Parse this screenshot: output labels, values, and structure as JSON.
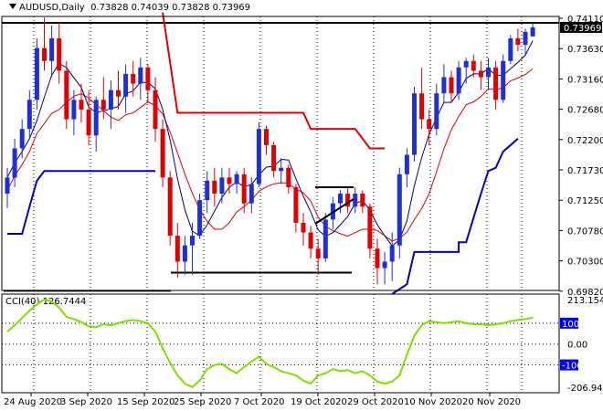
{
  "header": {
    "symbol": "AUDUSD,Daily",
    "ohlc": "0.73828 0.74039 0.73828 0.73969"
  },
  "price_axis": {
    "labels": [
      "0.74110",
      "0.73630",
      "0.73160",
      "0.72680",
      "0.72200",
      "0.71730",
      "0.71250",
      "0.70780",
      "0.70300",
      "0.69820"
    ],
    "current": "0.73969"
  },
  "cci_panel": {
    "title": "CCI(40) 126.7444",
    "labels": [
      "213.1541",
      "100",
      "0.00",
      "-100",
      "-206.9462"
    ]
  },
  "time_axis": {
    "labels": [
      "24 Aug 2020",
      "3 Sep 2020",
      "15 Sep 2020",
      "25 Sep 2020",
      "7 Oct 2020",
      "19 Oct 2020",
      "29 Oct 2020",
      "10 Nov 2020",
      "20 Nov 2020"
    ]
  },
  "colors": {
    "bull": "#1f2fd6",
    "bear": "#e00000",
    "ma_fast": "#000080",
    "ma_mid": "#e00000",
    "ma_slow": "#0000c8",
    "stop": "#e00000",
    "cci": "#7fe000",
    "cci_level": "#0000ff"
  },
  "chart_data": {
    "type": "candlestick",
    "series": [
      {
        "name": "AUDUSD",
        "candles": [
          [
            0.714,
            0.718,
            0.7118,
            0.7165
          ],
          [
            0.7165,
            0.7225,
            0.715,
            0.721
          ],
          [
            0.721,
            0.7255,
            0.7195,
            0.724
          ],
          [
            0.724,
            0.73,
            0.7225,
            0.7285
          ],
          [
            0.7285,
            0.738,
            0.727,
            0.7365
          ],
          [
            0.7365,
            0.7412,
            0.733,
            0.7345
          ],
          [
            0.7345,
            0.74,
            0.732,
            0.738
          ],
          [
            0.738,
            0.7405,
            0.731,
            0.733
          ],
          [
            0.733,
            0.7345,
            0.724,
            0.7255
          ],
          [
            0.7255,
            0.73,
            0.723,
            0.7285
          ],
          [
            0.7285,
            0.731,
            0.725,
            0.727
          ],
          [
            0.727,
            0.73,
            0.7215,
            0.723
          ],
          [
            0.723,
            0.729,
            0.7205,
            0.7285
          ],
          [
            0.7285,
            0.732,
            0.7255,
            0.727
          ],
          [
            0.727,
            0.7315,
            0.724,
            0.73
          ],
          [
            0.73,
            0.733,
            0.727,
            0.729
          ],
          [
            0.729,
            0.734,
            0.7265,
            0.7325
          ],
          [
            0.7325,
            0.7345,
            0.729,
            0.731
          ],
          [
            0.731,
            0.735,
            0.7285,
            0.7335
          ],
          [
            0.7335,
            0.734,
            0.728,
            0.73
          ],
          [
            0.73,
            0.732,
            0.722,
            0.724
          ],
          [
            0.724,
            0.7255,
            0.715,
            0.7165
          ],
          [
            0.7165,
            0.7175,
            0.706,
            0.7075
          ],
          [
            0.7075,
            0.7095,
            0.701,
            0.7035
          ],
          [
            0.7035,
            0.7075,
            0.7015,
            0.706
          ],
          [
            0.706,
            0.7095,
            0.7015,
            0.7075
          ],
          [
            0.7075,
            0.714,
            0.707,
            0.713
          ],
          [
            0.713,
            0.7175,
            0.711,
            0.716
          ],
          [
            0.716,
            0.718,
            0.712,
            0.714
          ],
          [
            0.714,
            0.718,
            0.7125,
            0.7165
          ],
          [
            0.7165,
            0.718,
            0.714,
            0.7155
          ],
          [
            0.7155,
            0.7175,
            0.714,
            0.717
          ],
          [
            0.717,
            0.718,
            0.711,
            0.7125
          ],
          [
            0.7125,
            0.7165,
            0.711,
            0.7155
          ],
          [
            0.7155,
            0.725,
            0.715,
            0.724
          ],
          [
            0.724,
            0.7245,
            0.72,
            0.7215
          ],
          [
            0.7215,
            0.722,
            0.7165,
            0.7175
          ],
          [
            0.7175,
            0.7195,
            0.7155,
            0.718
          ],
          [
            0.718,
            0.7185,
            0.714,
            0.715
          ],
          [
            0.715,
            0.7155,
            0.708,
            0.7095
          ],
          [
            0.7095,
            0.711,
            0.706,
            0.708
          ],
          [
            0.708,
            0.709,
            0.704,
            0.7055
          ],
          [
            0.7055,
            0.707,
            0.7015,
            0.704
          ],
          [
            0.704,
            0.711,
            0.7035,
            0.71
          ],
          [
            0.71,
            0.7135,
            0.7085,
            0.7125
          ],
          [
            0.7125,
            0.7145,
            0.711,
            0.714
          ],
          [
            0.714,
            0.715,
            0.711,
            0.712
          ],
          [
            0.712,
            0.715,
            0.711,
            0.714
          ],
          [
            0.714,
            0.7145,
            0.711,
            0.712
          ],
          [
            0.712,
            0.7125,
            0.704,
            0.7055
          ],
          [
            0.7055,
            0.707,
            0.7,
            0.7025
          ],
          [
            0.7025,
            0.705,
            0.7,
            0.7035
          ],
          [
            0.7035,
            0.708,
            0.7005,
            0.706
          ],
          [
            0.706,
            0.718,
            0.704,
            0.717
          ],
          [
            0.717,
            0.721,
            0.715,
            0.72
          ],
          [
            0.72,
            0.7305,
            0.719,
            0.7295
          ],
          [
            0.7295,
            0.7335,
            0.724,
            0.7255
          ],
          [
            0.7255,
            0.727,
            0.7215,
            0.724
          ],
          [
            0.724,
            0.731,
            0.723,
            0.7295
          ],
          [
            0.7295,
            0.734,
            0.728,
            0.732
          ],
          [
            0.732,
            0.733,
            0.728,
            0.7295
          ],
          [
            0.7295,
            0.7345,
            0.7285,
            0.7335
          ],
          [
            0.7335,
            0.735,
            0.731,
            0.7345
          ],
          [
            0.7345,
            0.7355,
            0.732,
            0.733
          ],
          [
            0.733,
            0.7345,
            0.73,
            0.732
          ],
          [
            0.732,
            0.735,
            0.73,
            0.7335
          ],
          [
            0.7335,
            0.7345,
            0.727,
            0.7285
          ],
          [
            0.7285,
            0.7355,
            0.728,
            0.7345
          ],
          [
            0.7345,
            0.7385,
            0.734,
            0.738
          ],
          [
            0.738,
            0.7395,
            0.736,
            0.737
          ],
          [
            0.737,
            0.7395,
            0.7355,
            0.739
          ],
          [
            0.7383,
            0.7404,
            0.7383,
            0.7397
          ]
        ]
      }
    ],
    "levels": {
      "resistance": 0.7404,
      "support": 0.7018,
      "old_low": 0.699
    },
    "cci": [
      60,
      90,
      125,
      160,
      190,
      213,
      205,
      175,
      130,
      120,
      105,
      85,
      80,
      95,
      90,
      100,
      110,
      115,
      110,
      100,
      60,
      -20,
      -90,
      -150,
      -190,
      -206,
      -175,
      -120,
      -100,
      -95,
      -120,
      -140,
      -110,
      -85,
      -60,
      -95,
      -110,
      -130,
      -140,
      -150,
      -175,
      -190,
      -150,
      -140,
      -120,
      -130,
      -125,
      -140,
      -130,
      -150,
      -180,
      -190,
      -180,
      -150,
      -50,
      40,
      90,
      110,
      105,
      100,
      105,
      110,
      100,
      95,
      95,
      90,
      95,
      100,
      110,
      115,
      120,
      126.7
    ]
  }
}
